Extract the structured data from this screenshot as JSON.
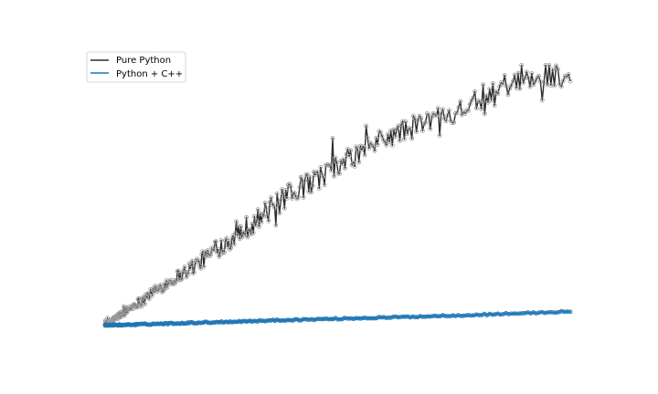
{
  "chart_data": {
    "type": "line",
    "title": "",
    "xlabel": "",
    "ylabel": "",
    "axes_visible": false,
    "grid": false,
    "legend_position": "top-left",
    "colors": {
      "pure_python": "#2b2b2b",
      "python_cpp": "#1f77b4",
      "marker_edge": "#9a9a9a"
    },
    "xlim": [
      0,
      1000
    ],
    "ylim": [
      -30,
      650
    ],
    "series": [
      {
        "name": "Pure Python",
        "trend_points": [
          [
            0,
            0
          ],
          [
            100,
            70
          ],
          [
            200,
            135
          ],
          [
            300,
            210
          ],
          [
            400,
            285
          ],
          [
            500,
            345
          ],
          [
            600,
            405
          ],
          [
            700,
            445
          ],
          [
            800,
            485
          ],
          [
            880,
            520
          ],
          [
            950,
            545
          ],
          [
            1000,
            540
          ]
        ],
        "noise_amplitude": 25,
        "sample_count": 420
      },
      {
        "name": "Python + C++",
        "trend_points": [
          [
            0,
            0
          ],
          [
            200,
            6
          ],
          [
            400,
            12
          ],
          [
            600,
            17
          ],
          [
            800,
            23
          ],
          [
            1000,
            30
          ]
        ],
        "noise_amplitude": 1.5,
        "sample_count": 260
      }
    ]
  }
}
